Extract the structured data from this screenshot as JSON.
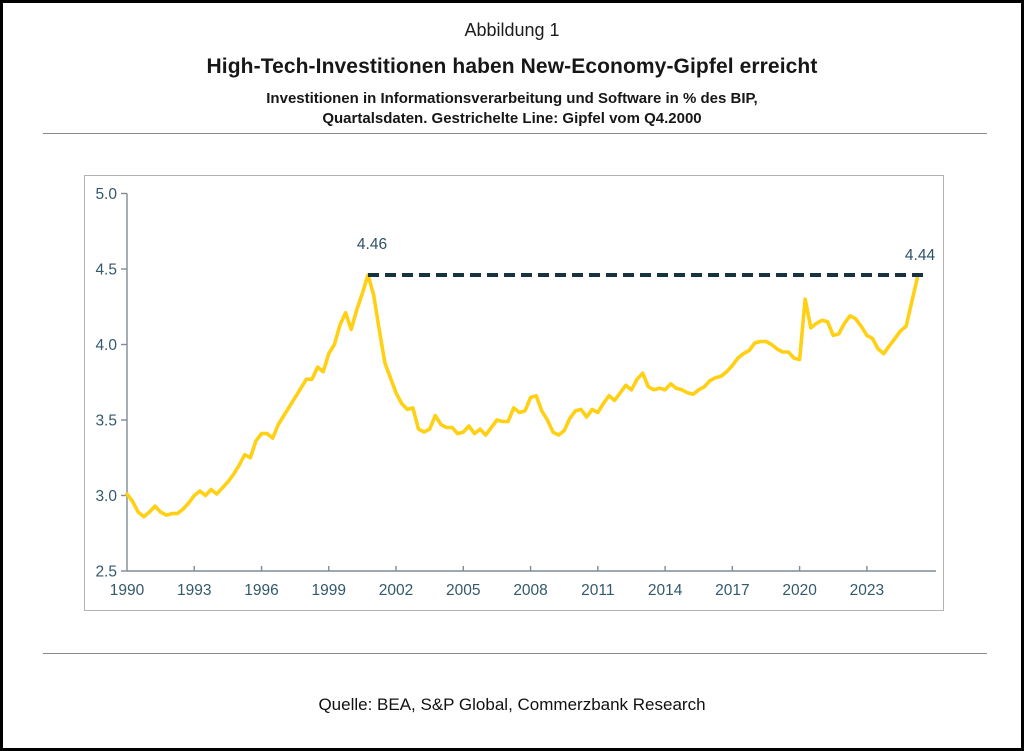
{
  "figure": {
    "label": "Abbildung 1",
    "title": "High-Tech-Investitionen haben New-Economy-Gipfel erreicht",
    "subtitle_line1": "Investitionen in Informationsverarbeitung und Software in % des BIP,",
    "subtitle_line2": "Quartalsdaten. Gestrichelte Line: Gipfel vom Q4.2000"
  },
  "source_note": "Quelle: BEA, S&P Global, Commerzbank Research",
  "colors": {
    "series_line": "#FFD013",
    "dashed_line": "#17333F",
    "axis": "#7E8C93",
    "tick_label": "#33596B",
    "annotation": "#2E5165",
    "frame_border": "#B3B3B3"
  },
  "chart_data": {
    "type": "line",
    "series_name": "Investitionen in Informationsverarbeitung und Software in % des BIP",
    "x_unit": "quarter",
    "x_start": 1990.0,
    "x_step": 0.25,
    "x_tick_years": [
      1990,
      1993,
      1996,
      1999,
      2002,
      2005,
      2008,
      2011,
      2014,
      2017,
      2020,
      2023
    ],
    "ylim": [
      2.5,
      5.0
    ],
    "y_ticks": [
      2.5,
      3.0,
      3.5,
      4.0,
      4.5,
      5.0
    ],
    "grid": false,
    "legend": false,
    "dashed_reference_line": {
      "value": 4.46,
      "label": "4.46",
      "start_x": 2000.75
    },
    "latest_point": {
      "value": 4.44,
      "label": "4.44"
    },
    "values": [
      3.01,
      2.96,
      2.89,
      2.86,
      2.89,
      2.93,
      2.89,
      2.87,
      2.88,
      2.88,
      2.91,
      2.95,
      3.0,
      3.03,
      3.0,
      3.04,
      3.01,
      3.05,
      3.09,
      3.14,
      3.2,
      3.27,
      3.25,
      3.36,
      3.41,
      3.41,
      3.38,
      3.47,
      3.53,
      3.59,
      3.65,
      3.71,
      3.77,
      3.77,
      3.85,
      3.82,
      3.94,
      4.0,
      4.13,
      4.21,
      4.1,
      4.23,
      4.34,
      4.46,
      4.33,
      4.1,
      3.88,
      3.78,
      3.68,
      3.61,
      3.57,
      3.58,
      3.44,
      3.42,
      3.44,
      3.53,
      3.47,
      3.45,
      3.45,
      3.41,
      3.42,
      3.46,
      3.41,
      3.44,
      3.4,
      3.45,
      3.5,
      3.49,
      3.49,
      3.58,
      3.55,
      3.56,
      3.65,
      3.66,
      3.56,
      3.5,
      3.42,
      3.4,
      3.43,
      3.51,
      3.56,
      3.57,
      3.52,
      3.57,
      3.55,
      3.61,
      3.66,
      3.63,
      3.68,
      3.73,
      3.7,
      3.77,
      3.81,
      3.72,
      3.7,
      3.71,
      3.7,
      3.74,
      3.71,
      3.7,
      3.68,
      3.67,
      3.7,
      3.72,
      3.76,
      3.78,
      3.79,
      3.82,
      3.86,
      3.91,
      3.94,
      3.96,
      4.01,
      4.02,
      4.02,
      4.0,
      3.97,
      3.95,
      3.95,
      3.91,
      3.9,
      4.3,
      4.11,
      4.14,
      4.16,
      4.15,
      4.06,
      4.07,
      4.14,
      4.19,
      4.17,
      4.12,
      4.06,
      4.04,
      3.97,
      3.94,
      3.99,
      4.04,
      4.09,
      4.12,
      4.28,
      4.44
    ]
  }
}
